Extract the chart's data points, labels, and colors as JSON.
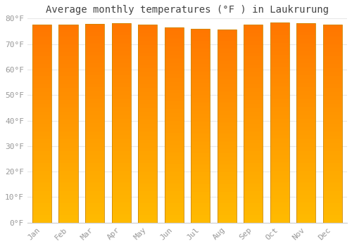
{
  "title": "Average monthly temperatures (°F ) in Laukrurung",
  "months": [
    "Jan",
    "Feb",
    "Mar",
    "Apr",
    "May",
    "Jun",
    "Jul",
    "Aug",
    "Sep",
    "Oct",
    "Nov",
    "Dec"
  ],
  "values": [
    77.7,
    77.7,
    77.9,
    78.1,
    77.5,
    76.6,
    75.9,
    75.7,
    77.5,
    78.3,
    78.1,
    77.7
  ],
  "bar_color_bottom": "#FFBB00",
  "bar_color_top": "#FF8800",
  "bar_edge_color": "#CC8800",
  "background_color": "#FFFFFF",
  "grid_color": "#E8E8E8",
  "ylim": [
    0,
    80
  ],
  "yticks": [
    0,
    10,
    20,
    30,
    40,
    50,
    60,
    70,
    80
  ],
  "bar_width": 0.72,
  "title_fontsize": 10,
  "tick_fontsize": 8,
  "tick_color": "#999999",
  "title_color": "#444444",
  "spine_color": "#CCCCCC",
  "n_gradient": 50
}
